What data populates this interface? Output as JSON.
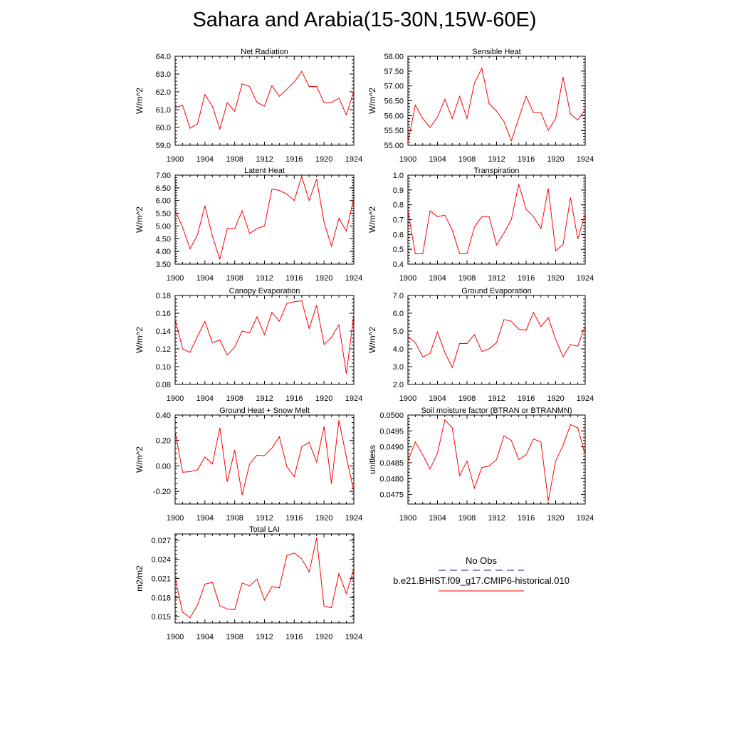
{
  "title": "Sahara and Arabia(15-30N,15W-60E)",
  "colors": {
    "series": "#ff0000",
    "obs": "#4a4a8a",
    "axis": "#000000"
  },
  "legend": {
    "obs_label": "No Obs",
    "model_label": "b.e21.BHIST.f09_g17.CMIP6-historical.010"
  },
  "x_ticks": [
    "1900",
    "1904",
    "1908",
    "1912",
    "1916",
    "1920",
    "1924"
  ],
  "chart_data": [
    {
      "type": "line",
      "title": "Net Radiation",
      "ylabel": "W/m^2",
      "xlim": [
        1900,
        1924
      ],
      "ylim": [
        59.0,
        64.0
      ],
      "yticks": [
        "59.0",
        "60.0",
        "61.0",
        "62.0",
        "63.0",
        "64.0"
      ],
      "ytick_values": [
        59.0,
        60.0,
        61.0,
        62.0,
        63.0,
        64.0
      ],
      "x": [
        1900,
        1901,
        1902,
        1903,
        1904,
        1905,
        1906,
        1907,
        1908,
        1909,
        1910,
        1911,
        1912,
        1913,
        1914,
        1915,
        1916,
        1917,
        1918,
        1919,
        1920,
        1921,
        1922,
        1923,
        1924
      ],
      "series": [
        {
          "values": [
            61.1,
            61.25,
            59.95,
            60.2,
            61.85,
            61.2,
            59.9,
            61.4,
            60.9,
            62.45,
            62.3,
            61.4,
            61.2,
            62.35,
            61.75,
            62.15,
            62.55,
            63.15,
            62.3,
            62.3,
            61.4,
            61.4,
            61.65,
            60.7,
            62.05
          ]
        }
      ]
    },
    {
      "type": "line",
      "title": "Sensible Heat",
      "ylabel": "W/m^2",
      "xlim": [
        1900,
        1924
      ],
      "ylim": [
        55.0,
        58.0
      ],
      "yticks": [
        "55.00",
        "55.50",
        "56.00",
        "56.50",
        "57.00",
        "57.50",
        "58.00"
      ],
      "ytick_values": [
        55.0,
        55.5,
        56.0,
        56.5,
        57.0,
        57.5,
        58.0
      ],
      "x": [
        1900,
        1901,
        1902,
        1903,
        1904,
        1905,
        1906,
        1907,
        1908,
        1909,
        1910,
        1911,
        1912,
        1913,
        1914,
        1915,
        1916,
        1917,
        1918,
        1919,
        1920,
        1921,
        1922,
        1923,
        1924
      ],
      "series": [
        {
          "values": [
            55.1,
            56.35,
            55.9,
            55.6,
            55.95,
            56.55,
            55.9,
            56.65,
            55.9,
            57.1,
            57.6,
            56.4,
            56.15,
            55.8,
            55.15,
            55.9,
            56.65,
            56.1,
            56.1,
            55.5,
            55.9,
            57.3,
            56.05,
            55.85,
            56.2
          ]
        }
      ]
    },
    {
      "type": "line",
      "title": "Latent Heat",
      "ylabel": "W/m^2",
      "xlim": [
        1900,
        1924
      ],
      "ylim": [
        3.5,
        7.0
      ],
      "yticks": [
        "3.50",
        "4.00",
        "4.50",
        "5.00",
        "5.50",
        "6.00",
        "6.50",
        "7.00"
      ],
      "ytick_values": [
        3.5,
        4.0,
        4.5,
        5.0,
        5.5,
        6.0,
        6.5,
        7.0
      ],
      "x": [
        1900,
        1901,
        1902,
        1903,
        1904,
        1905,
        1906,
        1907,
        1908,
        1909,
        1910,
        1911,
        1912,
        1913,
        1914,
        1915,
        1916,
        1917,
        1918,
        1919,
        1920,
        1921,
        1922,
        1923,
        1924
      ],
      "series": [
        {
          "values": [
            5.6,
            4.95,
            4.1,
            4.65,
            5.8,
            4.6,
            3.7,
            4.9,
            4.9,
            5.6,
            4.7,
            4.9,
            5.0,
            6.45,
            6.4,
            6.25,
            6.0,
            6.95,
            6.0,
            6.85,
            5.15,
            4.2,
            5.3,
            4.8,
            6.1
          ]
        }
      ]
    },
    {
      "type": "line",
      "title": "Transpiration",
      "ylabel": "W/m^2",
      "xlim": [
        1900,
        1924
      ],
      "ylim": [
        0.4,
        1.0
      ],
      "yticks": [
        "0.4",
        "0.5",
        "0.6",
        "0.7",
        "0.8",
        "0.9",
        "1.0"
      ],
      "ytick_values": [
        0.4,
        0.5,
        0.6,
        0.7,
        0.8,
        0.9,
        1.0
      ],
      "x": [
        1900,
        1901,
        1902,
        1903,
        1904,
        1905,
        1906,
        1907,
        1908,
        1909,
        1910,
        1911,
        1912,
        1913,
        1914,
        1915,
        1916,
        1917,
        1918,
        1919,
        1920,
        1921,
        1922,
        1923,
        1924
      ],
      "series": [
        {
          "values": [
            0.76,
            0.47,
            0.47,
            0.76,
            0.72,
            0.73,
            0.63,
            0.47,
            0.47,
            0.65,
            0.72,
            0.72,
            0.53,
            0.61,
            0.7,
            0.94,
            0.77,
            0.72,
            0.64,
            0.91,
            0.49,
            0.53,
            0.85,
            0.57,
            0.74
          ]
        }
      ]
    },
    {
      "type": "line",
      "title": "Canopy Evaporation",
      "ylabel": "W/m^2",
      "xlim": [
        1900,
        1924
      ],
      "ylim": [
        0.08,
        0.18
      ],
      "yticks": [
        "0.08",
        "0.10",
        "0.12",
        "0.14",
        "0.16",
        "0.18"
      ],
      "ytick_values": [
        0.08,
        0.1,
        0.12,
        0.14,
        0.16,
        0.18
      ],
      "x": [
        1900,
        1901,
        1902,
        1903,
        1904,
        1905,
        1906,
        1907,
        1908,
        1909,
        1910,
        1911,
        1912,
        1913,
        1914,
        1915,
        1916,
        1917,
        1918,
        1919,
        1920,
        1921,
        1922,
        1923,
        1924
      ],
      "series": [
        {
          "values": [
            0.153,
            0.12,
            0.116,
            0.134,
            0.151,
            0.127,
            0.13,
            0.113,
            0.122,
            0.14,
            0.138,
            0.156,
            0.136,
            0.161,
            0.151,
            0.171,
            0.173,
            0.174,
            0.143,
            0.169,
            0.125,
            0.133,
            0.147,
            0.092,
            0.158
          ]
        }
      ]
    },
    {
      "type": "line",
      "title": "Ground Evaporation",
      "ylabel": "W/m^2",
      "xlim": [
        1900,
        1924
      ],
      "ylim": [
        2.0,
        7.0
      ],
      "yticks": [
        "2.0",
        "3.0",
        "4.0",
        "5.0",
        "6.0",
        "7.0"
      ],
      "ytick_values": [
        2.0,
        3.0,
        4.0,
        5.0,
        6.0,
        7.0
      ],
      "x": [
        1900,
        1901,
        1902,
        1903,
        1904,
        1905,
        1906,
        1907,
        1908,
        1909,
        1910,
        1911,
        1912,
        1913,
        1914,
        1915,
        1916,
        1917,
        1918,
        1919,
        1920,
        1921,
        1922,
        1923,
        1924
      ],
      "series": [
        {
          "values": [
            4.7,
            4.35,
            3.55,
            3.75,
            4.95,
            3.8,
            2.95,
            4.3,
            4.3,
            4.8,
            3.85,
            4.0,
            4.35,
            5.65,
            5.55,
            5.1,
            5.05,
            6.05,
            5.25,
            5.75,
            4.55,
            3.55,
            4.25,
            4.15,
            5.3
          ]
        }
      ]
    },
    {
      "type": "line",
      "title": "Ground Heat + Snow Melt",
      "ylabel": "W/m^2",
      "xlim": [
        1900,
        1924
      ],
      "ylim": [
        -0.3,
        0.4
      ],
      "yticks": [
        "-0.20",
        "0.00",
        "0.20",
        "0.40"
      ],
      "ytick_values": [
        -0.2,
        0.0,
        0.2,
        0.4
      ],
      "x": [
        1900,
        1901,
        1902,
        1903,
        1904,
        1905,
        1906,
        1907,
        1908,
        1909,
        1910,
        1911,
        1912,
        1913,
        1914,
        1915,
        1916,
        1917,
        1918,
        1919,
        1920,
        1921,
        1922,
        1923,
        1924
      ],
      "series": [
        {
          "values": [
            0.27,
            -0.05,
            -0.045,
            -0.03,
            0.07,
            0.015,
            0.3,
            -0.125,
            0.125,
            -0.23,
            0.015,
            0.085,
            0.08,
            0.14,
            0.23,
            -0.005,
            -0.085,
            0.15,
            0.185,
            0.03,
            0.31,
            -0.14,
            0.36,
            0.07,
            -0.2
          ]
        }
      ]
    },
    {
      "type": "line",
      "title": "Soil moisture factor (BTRAN or BTRANMN)",
      "ylabel": "unitless",
      "xlim": [
        1900,
        1924
      ],
      "ylim": [
        0.0472,
        0.05
      ],
      "yticks": [
        "0.0475",
        "0.0480",
        "0.0485",
        "0.0490",
        "0.0495",
        "0.0500"
      ],
      "ytick_values": [
        0.0475,
        0.048,
        0.0485,
        0.049,
        0.0495,
        0.05
      ],
      "x": [
        1900,
        1901,
        1902,
        1903,
        1904,
        1905,
        1906,
        1907,
        1908,
        1909,
        1910,
        1911,
        1912,
        1913,
        1914,
        1915,
        1916,
        1917,
        1918,
        1919,
        1920,
        1921,
        1922,
        1923,
        1924
      ],
      "series": [
        {
          "values": [
            0.04855,
            0.04915,
            0.04875,
            0.0483,
            0.0488,
            0.04985,
            0.0496,
            0.0481,
            0.04855,
            0.0477,
            0.04835,
            0.0484,
            0.0486,
            0.04935,
            0.0492,
            0.0486,
            0.04875,
            0.04925,
            0.04915,
            0.0473,
            0.04855,
            0.04905,
            0.0497,
            0.0496,
            0.04875
          ]
        }
      ]
    },
    {
      "type": "line",
      "title": "Total LAI",
      "ylabel": "m2/m2",
      "xlim": [
        1900,
        1924
      ],
      "ylim": [
        0.014,
        0.028
      ],
      "yticks": [
        "0.015",
        "0.018",
        "0.021",
        "0.024",
        "0.027"
      ],
      "ytick_values": [
        0.015,
        0.018,
        0.021,
        0.024,
        0.027
      ],
      "x": [
        1900,
        1901,
        1902,
        1903,
        1904,
        1905,
        1906,
        1907,
        1908,
        1909,
        1910,
        1911,
        1912,
        1913,
        1914,
        1915,
        1916,
        1917,
        1918,
        1919,
        1920,
        1921,
        1922,
        1923,
        1924
      ],
      "series": [
        {
          "values": [
            0.021,
            0.0157,
            0.0148,
            0.0168,
            0.0201,
            0.0204,
            0.0167,
            0.0162,
            0.0161,
            0.0203,
            0.0198,
            0.0209,
            0.0176,
            0.0197,
            0.0195,
            0.0246,
            0.025,
            0.0241,
            0.022,
            0.0274,
            0.0166,
            0.0164,
            0.0218,
            0.0186,
            0.0225
          ]
        }
      ]
    }
  ]
}
